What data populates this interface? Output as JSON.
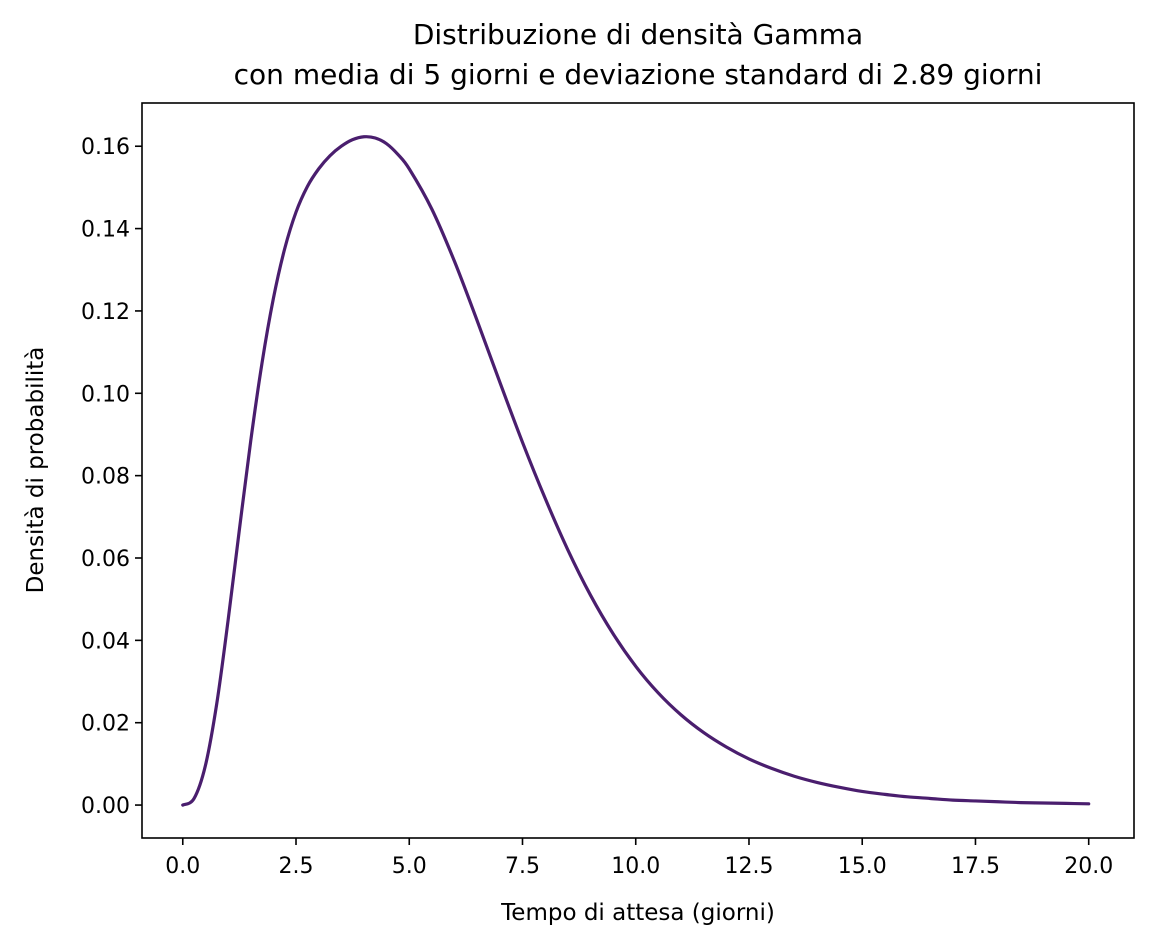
{
  "chart_data": {
    "type": "line",
    "title": "Distribuzione di densità Gamma",
    "subtitle": "con media di 5 giorni e deviazione standard di 2.89 giorni",
    "xlabel": "Tempo di attesa (giorni)",
    "ylabel": "Densità di probabilità",
    "xlim": [
      -0.9,
      21.0
    ],
    "ylim": [
      -0.008,
      0.1705
    ],
    "grid": false,
    "legend": "none",
    "xticks": [
      "0.0",
      "2.5",
      "5.0",
      "7.5",
      "10.0",
      "12.5",
      "15.0",
      "17.5",
      "20.0"
    ],
    "xtick_values": [
      0,
      2.5,
      5,
      7.5,
      10,
      12.5,
      15,
      17.5,
      20
    ],
    "yticks": [
      "0.00",
      "0.02",
      "0.04",
      "0.06",
      "0.08",
      "0.10",
      "0.12",
      "0.14",
      "0.16"
    ],
    "ytick_values": [
      0,
      0.02,
      0.04,
      0.06,
      0.08,
      0.1,
      0.12,
      0.14,
      0.16
    ],
    "series": [
      {
        "color": "#4a1e6e",
        "x": [
          0,
          0.25,
          0.5,
          0.75,
          1.0,
          1.25,
          1.5,
          1.75,
          2.0,
          2.25,
          2.5,
          2.75,
          3.0,
          3.25,
          3.5,
          3.75,
          4.0,
          4.25,
          4.5,
          4.75,
          5.0,
          5.5,
          6.0,
          6.5,
          7.0,
          7.5,
          8.0,
          8.5,
          9.0,
          9.5,
          10.0,
          10.5,
          11.0,
          11.5,
          12.0,
          12.5,
          13.0,
          13.5,
          14.0,
          14.5,
          15.0,
          15.5,
          16.0,
          16.5,
          17.0,
          17.5,
          18.0,
          18.5,
          19.0,
          19.5,
          20.0
        ],
        "y": [
          0,
          0.0016,
          0.0096,
          0.0246,
          0.0448,
          0.0669,
          0.0884,
          0.1074,
          0.123,
          0.1351,
          0.144,
          0.1502,
          0.1545,
          0.1577,
          0.16,
          0.1616,
          0.1623,
          0.162,
          0.1606,
          0.158,
          0.1545,
          0.1447,
          0.132,
          0.1176,
          0.1027,
          0.0881,
          0.0745,
          0.062,
          0.051,
          0.0416,
          0.0337,
          0.0272,
          0.0219,
          0.0176,
          0.0141,
          0.0112,
          0.0089,
          0.007,
          0.0055,
          0.0043,
          0.0033,
          0.0026,
          0.002,
          0.0016,
          0.0012,
          0.001,
          0.0008,
          0.0006,
          0.0005,
          0.0004,
          0.0003
        ]
      }
    ]
  }
}
